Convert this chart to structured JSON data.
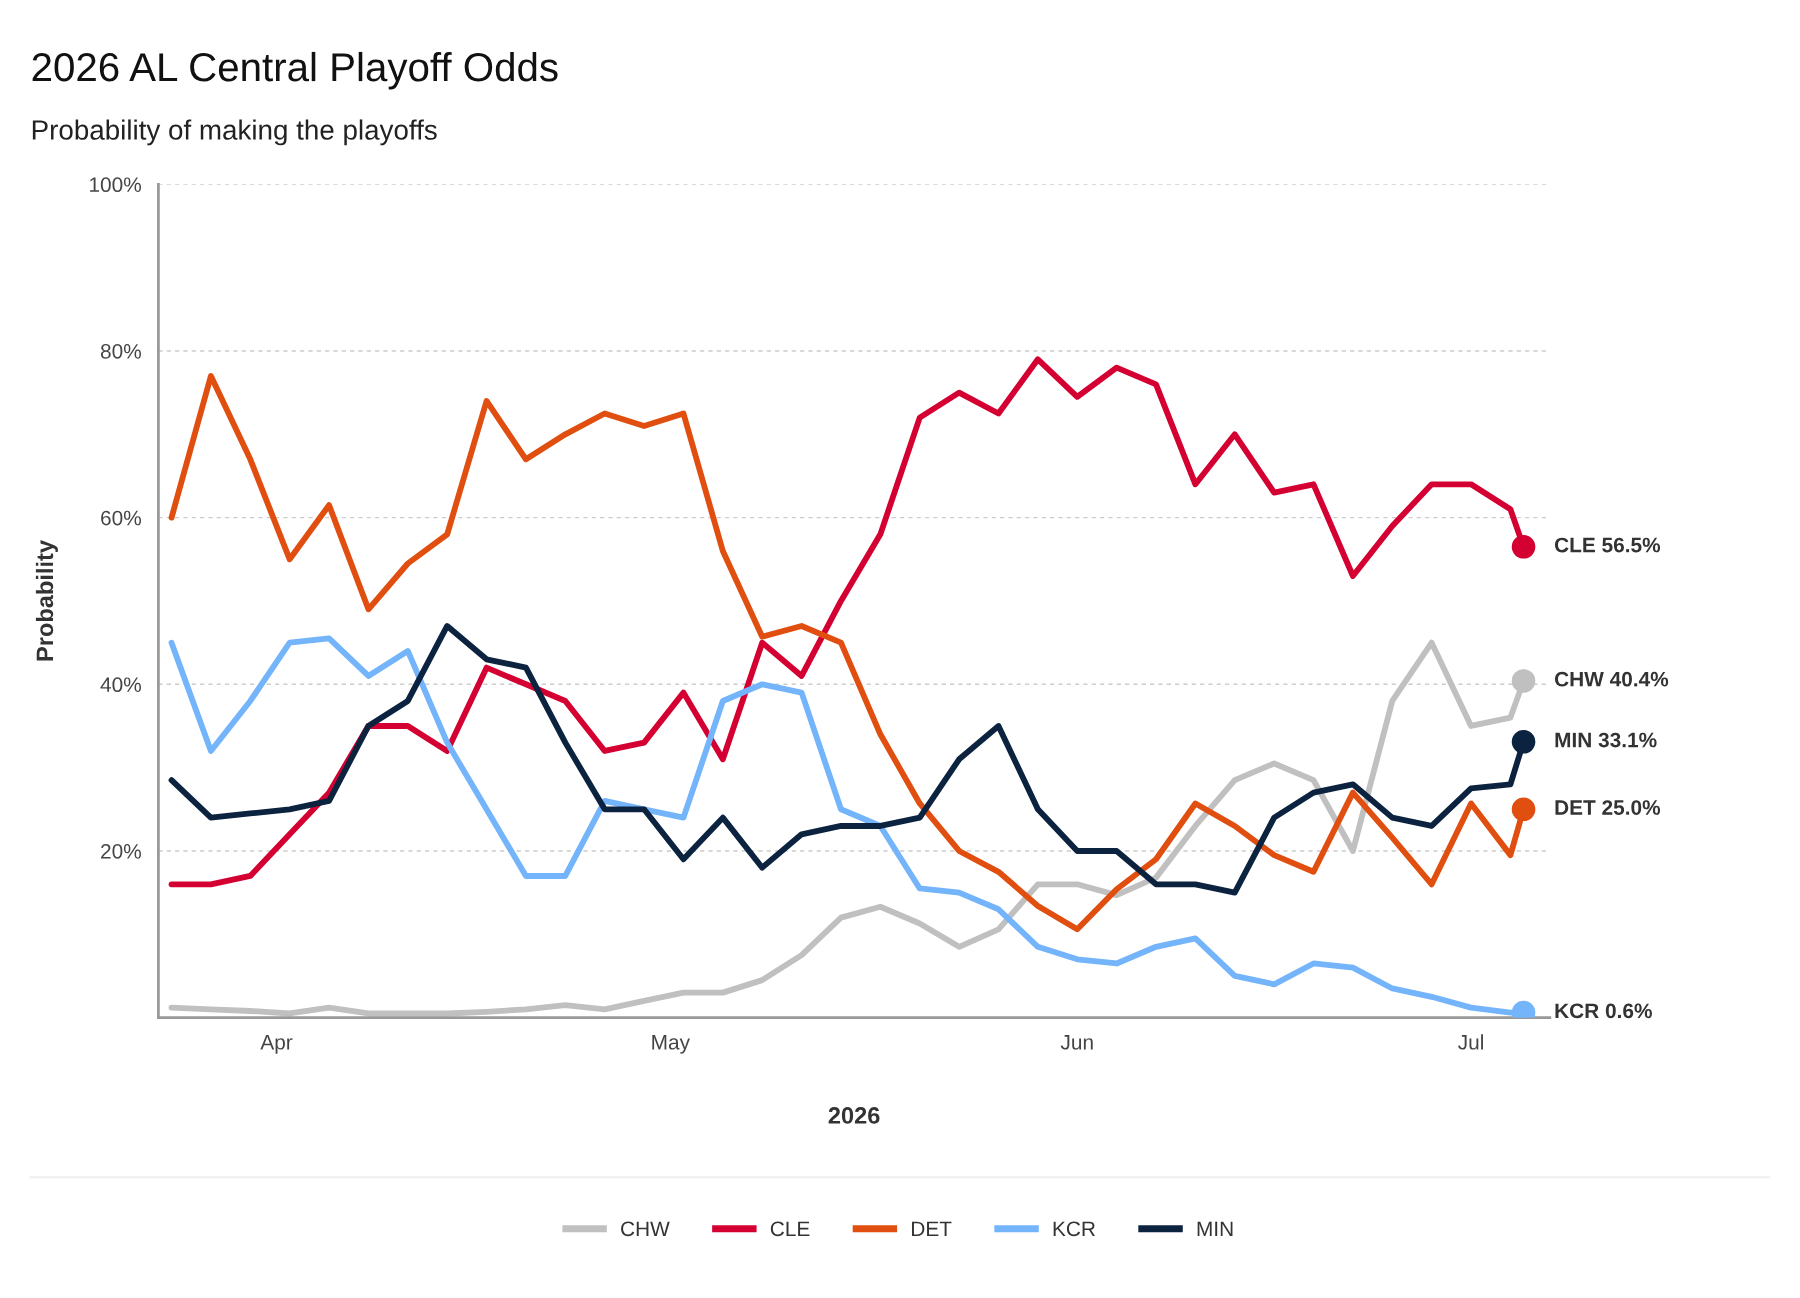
{
  "chart_data": {
    "type": "line",
    "title": "2026 AL Central Playoff Odds",
    "subtitle": "Probability of making the playoffs",
    "xlabel": "2026",
    "ylabel": "Probability",
    "x": [
      "2026-03-24",
      "2026-03-27",
      "2026-03-30",
      "2026-04-02",
      "2026-04-05",
      "2026-04-08",
      "2026-04-11",
      "2026-04-14",
      "2026-04-17",
      "2026-04-20",
      "2026-04-23",
      "2026-04-26",
      "2026-04-29",
      "2026-05-02",
      "2026-05-05",
      "2026-05-08",
      "2026-05-11",
      "2026-05-14",
      "2026-05-17",
      "2026-05-20",
      "2026-05-23",
      "2026-05-26",
      "2026-05-29",
      "2026-06-01",
      "2026-06-04",
      "2026-06-07",
      "2026-06-10",
      "2026-06-13",
      "2026-06-16",
      "2026-06-19",
      "2026-06-22",
      "2026-06-25",
      "2026-06-28",
      "2026-07-01",
      "2026-07-04",
      "2026-07-05"
    ],
    "series": [
      {
        "name": "CHW",
        "color": "#c0c0c0",
        "values": [
          1.2,
          1.0,
          0.8,
          0.5,
          1.2,
          0.5,
          0.5,
          0.5,
          0.7,
          1.0,
          1.5,
          1.0,
          2.0,
          3.0,
          3.0,
          4.5,
          7.5,
          12,
          13.3,
          11.3,
          8.5,
          10.6,
          16,
          16,
          14.7,
          16.8,
          23,
          28.5,
          30.5,
          28.5,
          20,
          38,
          45,
          35,
          36,
          40.4
        ]
      },
      {
        "name": "CLE",
        "color": "#d50032",
        "values": [
          16,
          16,
          17,
          22,
          27,
          35,
          35,
          32,
          42,
          40,
          38,
          32,
          33,
          39,
          31,
          45,
          41,
          50,
          58,
          72,
          75,
          72.5,
          79,
          74.5,
          78,
          76,
          64,
          70,
          63,
          64,
          53,
          59,
          64,
          64,
          61,
          56.5
        ]
      },
      {
        "name": "DET",
        "color": "#e04e10",
        "values": [
          60,
          77,
          67,
          55,
          61.5,
          49,
          54.5,
          58,
          74,
          67,
          70,
          72.5,
          71,
          72.5,
          56,
          45.7,
          47,
          45,
          34,
          25.7,
          20,
          17.5,
          13.4,
          10.6,
          15.4,
          19,
          25.7,
          23,
          19.5,
          17.5,
          27,
          21.6,
          16,
          25.7,
          19.5,
          25.0
        ]
      },
      {
        "name": "KCR",
        "color": "#74b4fa",
        "values": [
          45,
          32,
          38,
          45,
          45.5,
          41,
          44,
          33,
          25,
          17,
          17,
          26,
          25,
          24,
          38,
          40,
          39,
          25,
          23,
          15.5,
          15,
          13,
          8.5,
          7,
          6.5,
          8.5,
          9.5,
          5,
          4,
          6.5,
          6,
          3.5,
          2.5,
          1.2,
          0.6,
          0.6
        ]
      },
      {
        "name": "MIN",
        "color": "#0c2340",
        "values": [
          28.5,
          24,
          24.5,
          25,
          26,
          35,
          38,
          47,
          43,
          42,
          33,
          25,
          25,
          19,
          24,
          18,
          22,
          23,
          23,
          24,
          31,
          35,
          25,
          20,
          20,
          16,
          16,
          15,
          24,
          27,
          28,
          24,
          23,
          27.5,
          28,
          33.1
        ]
      }
    ],
    "annotations": [
      {
        "text": "CLE 56.5%",
        "x": "2026-07-05",
        "y": 56.5
      },
      {
        "text": "CHW 40.4%",
        "x": "2026-07-05",
        "y": 40.4
      },
      {
        "text": "MIN 33.1%",
        "x": "2026-07-05",
        "y": 33.1
      },
      {
        "text": "DET 25.0%",
        "x": "2026-07-05",
        "y": 25.0
      },
      {
        "text": "KCR 0.6%",
        "x": "2026-07-05",
        "y": 0.6
      }
    ],
    "xlim": [
      "2026-03-23",
      "2026-07-07"
    ],
    "xticks": [
      {
        "value": "2026-04-01",
        "label": "Apr"
      },
      {
        "value": "2026-05-01",
        "label": "May"
      },
      {
        "value": "2026-06-01",
        "label": "Jun"
      },
      {
        "value": "2026-07-01",
        "label": "Jul"
      }
    ],
    "ylim": [
      0,
      100
    ],
    "yticks": [
      {
        "value": 20,
        "label": "20%"
      },
      {
        "value": 40,
        "label": "40%"
      },
      {
        "value": 60,
        "label": "60%"
      },
      {
        "value": 80,
        "label": "80%"
      },
      {
        "value": 100,
        "label": "100%"
      }
    ],
    "grid": "y",
    "legend": "bottom",
    "line_style": "solid"
  }
}
